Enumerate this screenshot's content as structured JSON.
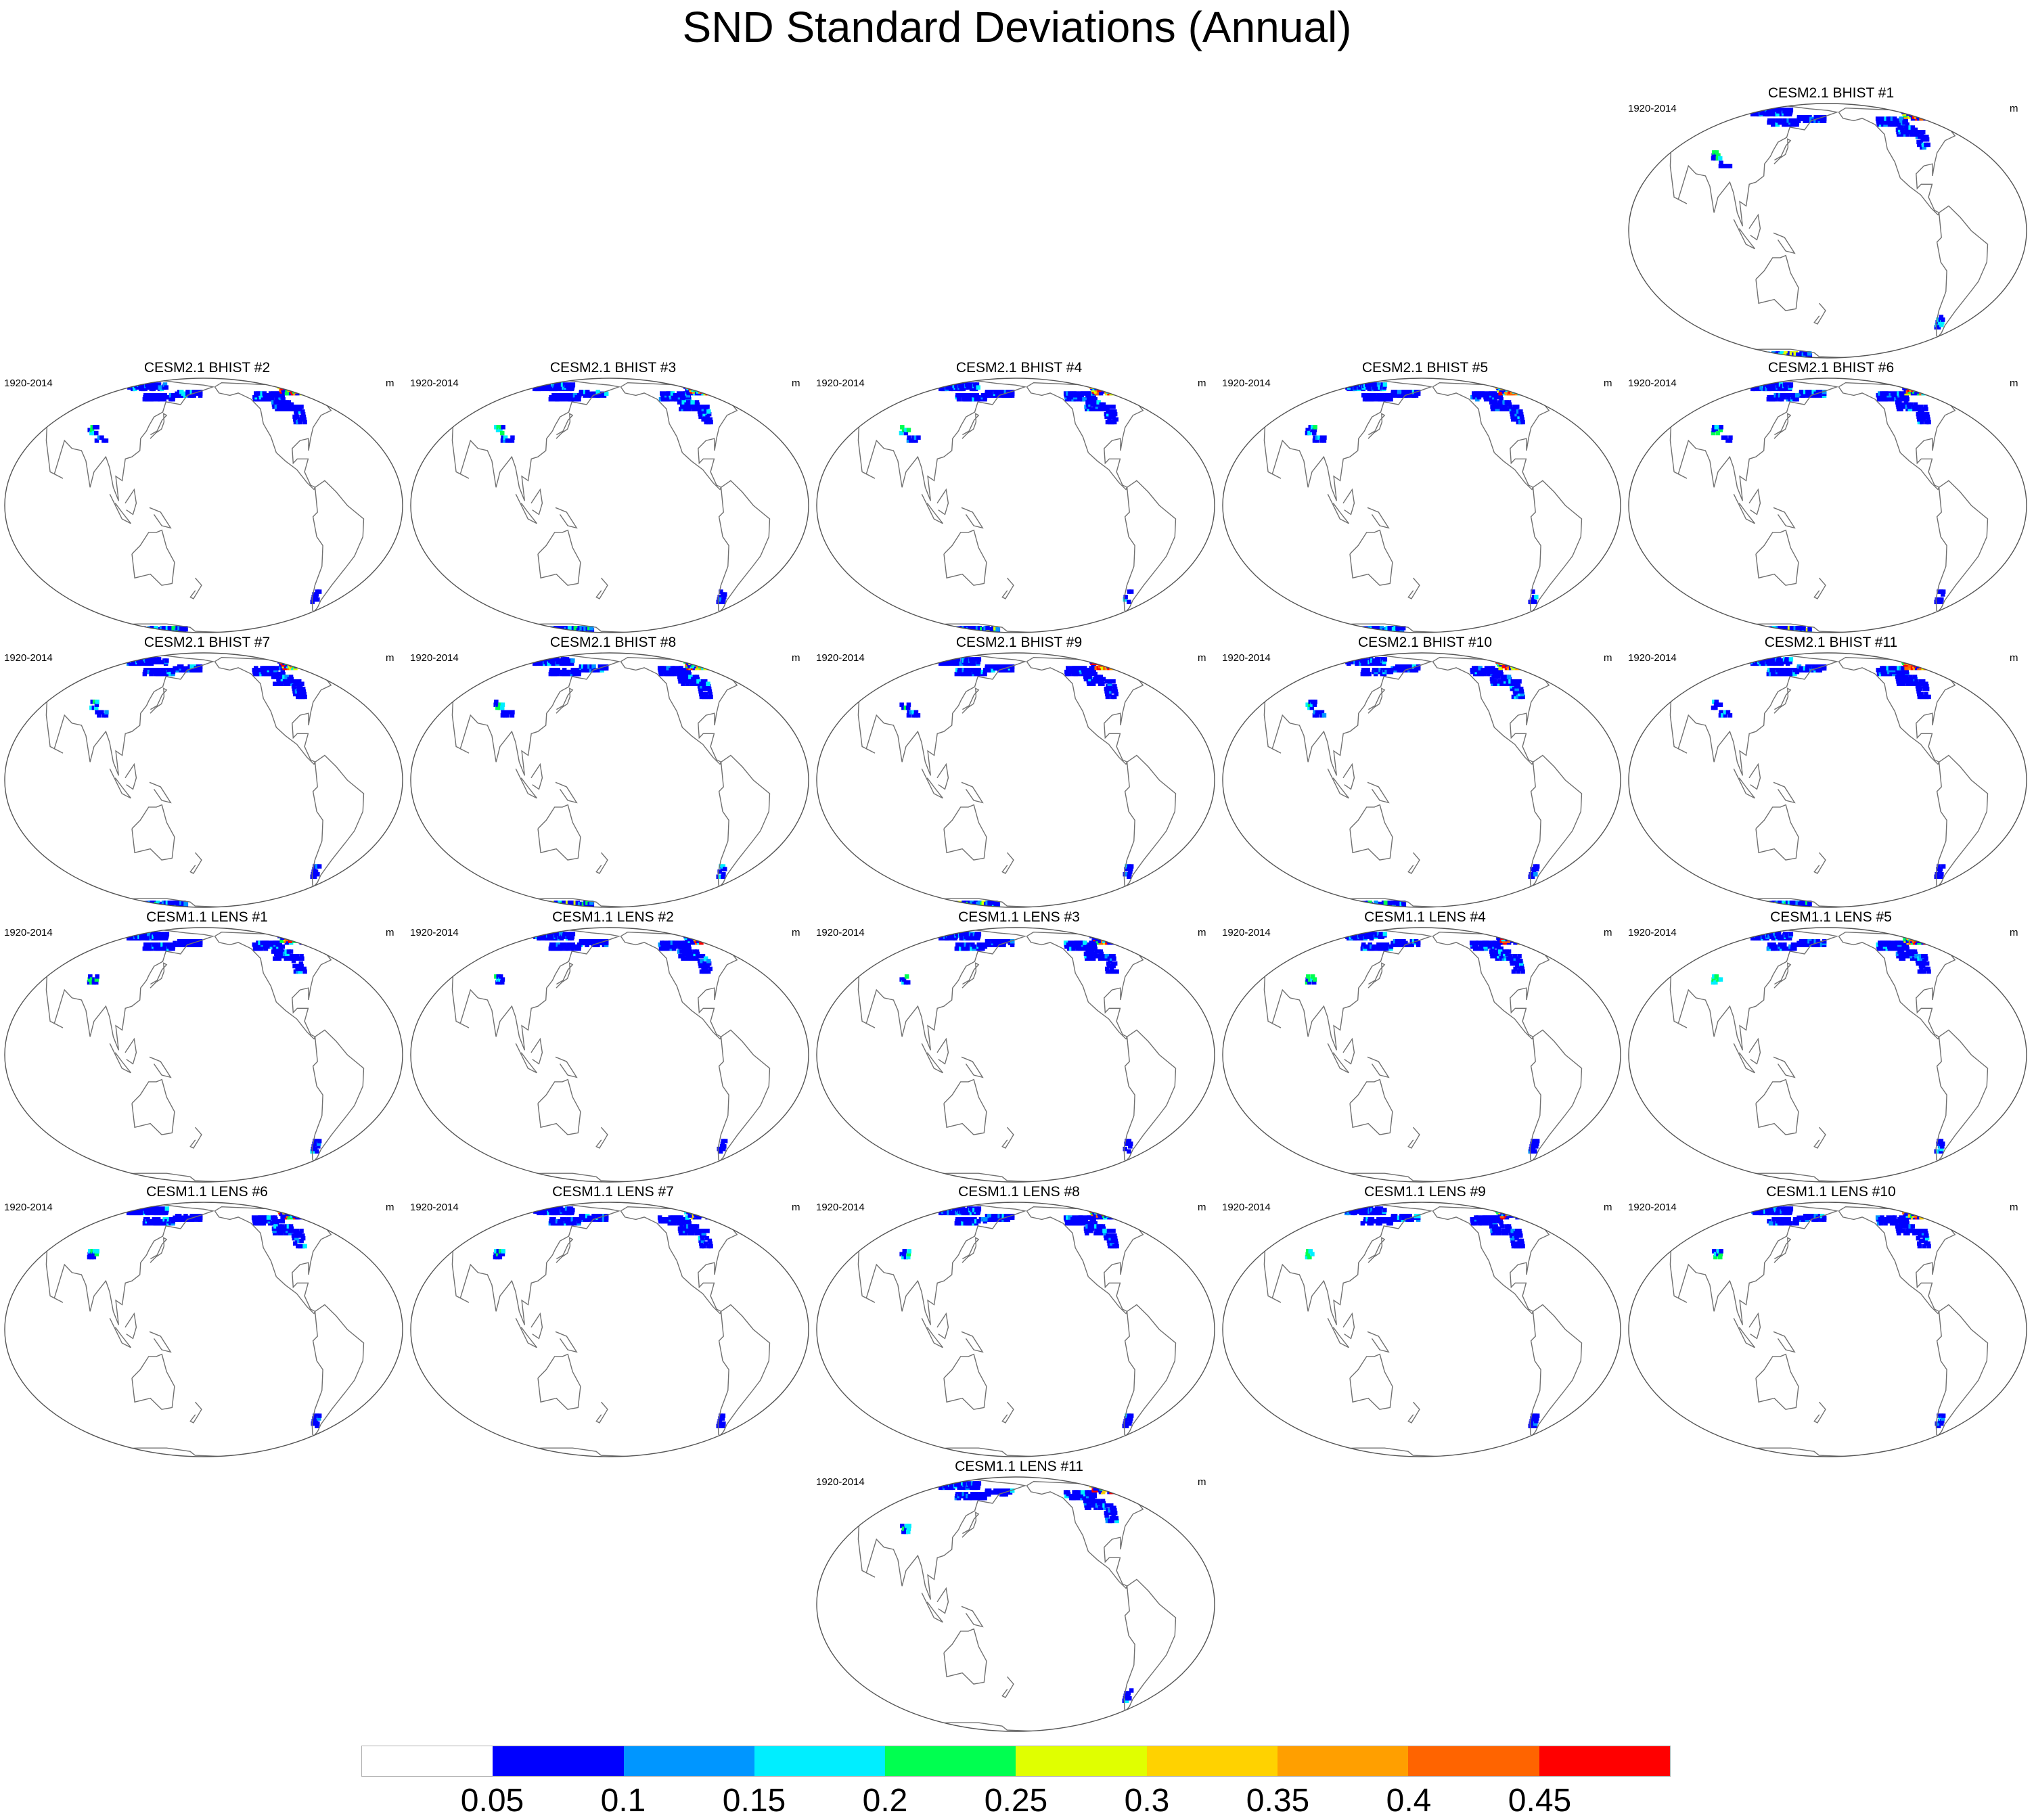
{
  "figure": {
    "title": "SND Standard Deviations (Annual)",
    "variable": "SND",
    "season": "Annual"
  },
  "panels": [
    {
      "title": "CESM2.1 BHIST #1",
      "left_label": "1920-2014",
      "right_label": "m",
      "group": "BHIST"
    },
    {
      "title": "CESM2.1 BHIST #2",
      "left_label": "1920-2014",
      "right_label": "m",
      "group": "BHIST"
    },
    {
      "title": "CESM2.1 BHIST #3",
      "left_label": "1920-2014",
      "right_label": "m",
      "group": "BHIST"
    },
    {
      "title": "CESM2.1 BHIST #4",
      "left_label": "1920-2014",
      "right_label": "m",
      "group": "BHIST"
    },
    {
      "title": "CESM2.1 BHIST #5",
      "left_label": "1920-2014",
      "right_label": "m",
      "group": "BHIST"
    },
    {
      "title": "CESM2.1 BHIST #6",
      "left_label": "1920-2014",
      "right_label": "m",
      "group": "BHIST"
    },
    {
      "title": "CESM2.1 BHIST #7",
      "left_label": "1920-2014",
      "right_label": "m",
      "group": "BHIST"
    },
    {
      "title": "CESM2.1 BHIST #8",
      "left_label": "1920-2014",
      "right_label": "m",
      "group": "BHIST"
    },
    {
      "title": "CESM2.1 BHIST #9",
      "left_label": "1920-2014",
      "right_label": "m",
      "group": "BHIST"
    },
    {
      "title": "CESM2.1 BHIST #10",
      "left_label": "1920-2014",
      "right_label": "m",
      "group": "BHIST"
    },
    {
      "title": "CESM2.1 BHIST #11",
      "left_label": "1920-2014",
      "right_label": "m",
      "group": "BHIST"
    },
    {
      "title": "CESM1.1 LENS #1",
      "left_label": "1920-2014",
      "right_label": "m",
      "group": "LENS"
    },
    {
      "title": "CESM1.1 LENS #2",
      "left_label": "1920-2014",
      "right_label": "m",
      "group": "LENS"
    },
    {
      "title": "CESM1.1 LENS #3",
      "left_label": "1920-2014",
      "right_label": "m",
      "group": "LENS"
    },
    {
      "title": "CESM1.1 LENS #4",
      "left_label": "1920-2014",
      "right_label": "m",
      "group": "LENS"
    },
    {
      "title": "CESM1.1 LENS #5",
      "left_label": "1920-2014",
      "right_label": "m",
      "group": "LENS"
    },
    {
      "title": "CESM1.1 LENS #6",
      "left_label": "1920-2014",
      "right_label": "m",
      "group": "LENS"
    },
    {
      "title": "CESM1.1 LENS #7",
      "left_label": "1920-2014",
      "right_label": "m",
      "group": "LENS"
    },
    {
      "title": "CESM1.1 LENS #8",
      "left_label": "1920-2014",
      "right_label": "m",
      "group": "LENS"
    },
    {
      "title": "CESM1.1 LENS #9",
      "left_label": "1920-2014",
      "right_label": "m",
      "group": "LENS"
    },
    {
      "title": "CESM1.1 LENS #10",
      "left_label": "1920-2014",
      "right_label": "m",
      "group": "LENS"
    },
    {
      "title": "CESM1.1 LENS #11",
      "left_label": "1920-2014",
      "right_label": "m",
      "group": "LENS"
    }
  ],
  "colorbar": {
    "colors": [
      "#ffffff",
      "#0000ff",
      "#0096ff",
      "#00eeff",
      "#00ff50",
      "#e0ff00",
      "#ffd200",
      "#ff9f00",
      "#ff6400",
      "#ff0000"
    ],
    "labels": [
      "0.05",
      "0.1",
      "0.15",
      "0.2",
      "0.25",
      "0.3",
      "0.35",
      "0.4",
      "0.45"
    ]
  },
  "map_style": {
    "coastline_color": "#707070",
    "outline_color": "#555555"
  }
}
